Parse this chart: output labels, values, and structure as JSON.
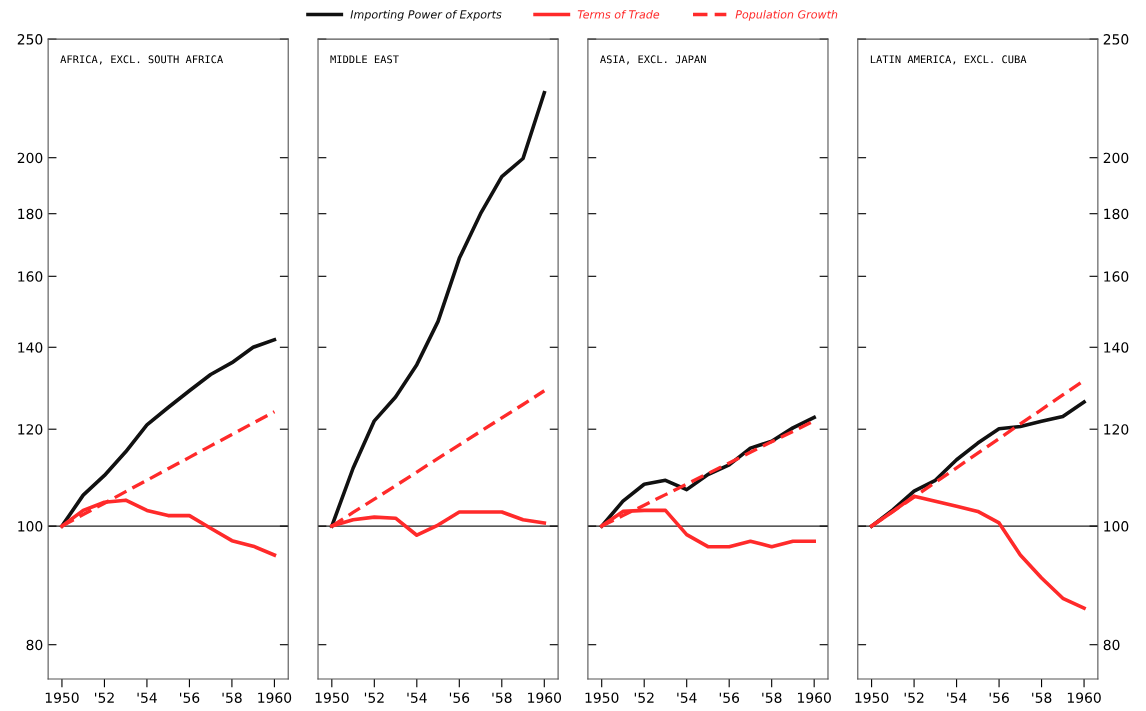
{
  "chart_data": [
    {
      "type": "line",
      "title": "AFRICA, EXCL. SOUTH AFRICA",
      "log": true,
      "legend": "top",
      "tick_labels": "xy",
      "x": [
        1950,
        1951,
        1952,
        1953,
        1954,
        1955,
        1956,
        1957,
        1958,
        1959,
        1960
      ],
      "xlim": [
        1949.35,
        1960.65
      ],
      "xticks": [
        1950,
        {
          "value": 1952,
          "label": "'52"
        },
        {
          "value": 1954,
          "label": "'54"
        },
        {
          "value": 1956,
          "label": "'56"
        },
        {
          "value": 1958,
          "label": "'58"
        },
        1960
      ],
      "ylim": [
        75,
        250
      ],
      "yticks": [
        80,
        100,
        120,
        140,
        160,
        180,
        200,
        250
      ],
      "ref_lines": [
        {
          "axis": "y",
          "value": 100,
          "color": "#222222"
        }
      ],
      "series": [
        {
          "name": "Importing Power of Exports",
          "color": "#111111",
          "line_style": "solid",
          "values": [
            100,
            106,
            110,
            115,
            121,
            125,
            129,
            133,
            136,
            140,
            142
          ]
        },
        {
          "name": "Terms of Trade",
          "color": "#ff2a2a",
          "line_style": "solid",
          "values": [
            100,
            103,
            104.6,
            105,
            103,
            102,
            102,
            99.6,
            97.3,
            96.3,
            94.7
          ]
        },
        {
          "name": "Population Growth",
          "color": "#ff2a2a",
          "line_style": "dashed",
          "values": [
            100,
            102.2,
            104.4,
            106.7,
            109,
            111.4,
            113.8,
            116.3,
            118.8,
            121.4,
            124
          ]
        }
      ]
    },
    {
      "type": "line",
      "title": "MIDDLE EAST",
      "log": true,
      "tick_labels": "x",
      "x": [
        1950,
        1951,
        1952,
        1953,
        1954,
        1955,
        1956,
        1957,
        1958,
        1959,
        1960
      ],
      "xlim": [
        1949.35,
        1960.65
      ],
      "xticks": [
        1950,
        {
          "value": 1952,
          "label": "'52"
        },
        {
          "value": 1954,
          "label": "'54"
        },
        {
          "value": 1956,
          "label": "'56"
        },
        {
          "value": 1958,
          "label": "'58"
        },
        1960
      ],
      "ylim": [
        75,
        250
      ],
      "yticks": [
        80,
        100,
        120,
        140,
        160,
        180,
        200,
        250
      ],
      "ref_lines": [
        {
          "axis": "y",
          "value": 100,
          "color": "#222222"
        }
      ],
      "series": [
        {
          "color": "#111111",
          "line_style": "solid",
          "values": [
            100,
            111.5,
            121.9,
            127.5,
            135.5,
            147,
            165.5,
            180,
            193,
            199.7,
            226
          ]
        },
        {
          "color": "#ff2a2a",
          "line_style": "solid",
          "values": [
            100,
            101.2,
            101.7,
            101.5,
            98.3,
            100.2,
            102.7,
            102.7,
            102.7,
            101.2,
            100.6
          ]
        },
        {
          "color": "#ff2a2a",
          "line_style": "dashed",
          "values": [
            100,
            102.6,
            105.2,
            107.9,
            110.7,
            113.6,
            116.5,
            119.5,
            122.6,
            125.7,
            129
          ]
        }
      ]
    },
    {
      "type": "line",
      "title": "ASIA, EXCL. JAPAN",
      "log": true,
      "tick_labels": "x",
      "x": [
        1950,
        1951,
        1952,
        1953,
        1954,
        1955,
        1956,
        1957,
        1958,
        1959,
        1960
      ],
      "xlim": [
        1949.35,
        1960.65
      ],
      "xticks": [
        1950,
        {
          "value": 1952,
          "label": "'52"
        },
        {
          "value": 1954,
          "label": "'54"
        },
        {
          "value": 1956,
          "label": "'56"
        },
        {
          "value": 1958,
          "label": "'58"
        },
        1960
      ],
      "ylim": [
        75,
        250
      ],
      "yticks": [
        80,
        100,
        120,
        140,
        160,
        180,
        200,
        250
      ],
      "ref_lines": [
        {
          "axis": "y",
          "value": 100,
          "color": "#222222"
        }
      ],
      "series": [
        {
          "color": "#111111",
          "line_style": "solid",
          "values": [
            100,
            104.8,
            108.2,
            109,
            107.1,
            110.2,
            112.2,
            115.8,
            117.3,
            120.3,
            122.7
          ]
        },
        {
          "color": "#ff2a2a",
          "line_style": "solid",
          "values": [
            100,
            102.8,
            103,
            103,
            98.4,
            96.2,
            96.2,
            97.2,
            96.2,
            97.2,
            97.2
          ]
        },
        {
          "color": "#ff2a2a",
          "line_style": "dashed",
          "values": [
            100,
            102,
            104,
            106.1,
            108.2,
            110.4,
            112.6,
            114.9,
            117.2,
            119.5,
            121.9
          ]
        }
      ]
    },
    {
      "type": "line",
      "title": "LATIN AMERICA, EXCL. CUBA",
      "log": "y2",
      "x": [
        1950,
        1951,
        1952,
        1953,
        1954,
        1955,
        1956,
        1957,
        1958,
        1959,
        1960
      ],
      "xlim": [
        1949.35,
        1960.65
      ],
      "xticks": [
        1950,
        {
          "value": 1952,
          "label": "'52"
        },
        {
          "value": 1954,
          "label": "'54"
        },
        {
          "value": 1956,
          "label": "'56"
        },
        {
          "value": 1958,
          "label": "'58"
        },
        1960
      ],
      "y2lim": [
        75,
        250
      ],
      "y2ticks": [
        80,
        100,
        120,
        140,
        160,
        180,
        200,
        250
      ],
      "ref_lines": [
        {
          "axis": "y2",
          "value": 100,
          "color": "#222222"
        }
      ],
      "series": [
        {
          "color": "#111111",
          "line_style": "solid",
          "axis": "y2",
          "values": [
            100,
            103.1,
            106.8,
            109,
            113.3,
            116.9,
            120.1,
            120.6,
            121.8,
            122.9,
            126.3
          ]
        },
        {
          "color": "#ff2a2a",
          "line_style": "solid",
          "axis": "y2",
          "values": [
            100,
            102.8,
            105.8,
            104.8,
            103.8,
            102.8,
            100.6,
            94.7,
            90.7,
            87.3,
            85.7
          ]
        },
        {
          "color": "#ff2a2a",
          "line_style": "dashed",
          "axis": "y2",
          "values": [
            100,
            102.8,
            105.6,
            108.6,
            111.6,
            114.7,
            117.9,
            121.2,
            124.5,
            128,
            131.5
          ]
        }
      ]
    }
  ]
}
